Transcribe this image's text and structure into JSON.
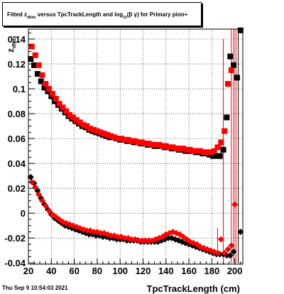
{
  "title": {
    "part1": "Fitted  z",
    "sub1": "dNdx",
    "part2": "  versus  TpcTrackLength and log",
    "sub2": "10",
    "part3": "(β  γ) for Primary pion+"
  },
  "timestamp": "Thu Sep  9 10:54:03 2021",
  "colors": {
    "black_series": "#000000",
    "red_series": "#ff0000",
    "grid": "#000000"
  },
  "chart_data": {
    "type": "scatter",
    "xlabel": "TpcTrackLength (cm)",
    "ylabel": "z_dNdx",
    "ylabel_main": "z",
    "ylabel_sub": "dNdx",
    "xlim": [
      20,
      207
    ],
    "ylim": [
      -0.041,
      0.148
    ],
    "grid": true,
    "xticks": [
      20,
      40,
      60,
      80,
      100,
      120,
      140,
      160,
      180,
      200
    ],
    "xtick_labels": [
      "20",
      "40",
      "60",
      "80",
      "100",
      "120",
      "140",
      "160",
      "180",
      "200"
    ],
    "yticks": [
      -0.04,
      -0.02,
      0,
      0.02,
      0.04,
      0.06,
      0.08,
      0.1,
      0.12,
      0.14
    ],
    "ytick_labels": [
      "-0.04",
      "-0.02",
      "0",
      "0.02",
      "0.04",
      "0.06",
      "0.08",
      "0.1",
      "0.12",
      "0.14"
    ],
    "series": [
      {
        "marker": "square",
        "color": "#000000",
        "x": [
          22,
          25,
          28,
          31,
          34,
          37,
          40,
          43,
          46,
          49,
          52,
          55,
          58,
          61,
          64,
          67,
          70,
          73,
          76,
          79,
          82,
          85,
          88,
          91,
          94,
          97,
          100,
          103,
          106,
          109,
          112,
          115,
          118,
          121,
          124,
          127,
          130,
          133,
          136,
          139,
          142,
          145,
          148,
          151,
          154,
          157,
          160,
          163,
          166,
          169,
          172,
          175,
          178,
          181,
          184,
          187,
          190,
          193,
          196,
          199,
          202,
          205
        ],
        "y": [
          0.124,
          0.119,
          0.112,
          0.106,
          0.101,
          0.098,
          0.094,
          0.09,
          0.087,
          0.084,
          0.081,
          0.078,
          0.076,
          0.074,
          0.072,
          0.07,
          0.069,
          0.067,
          0.066,
          0.065,
          0.064,
          0.063,
          0.062,
          0.061,
          0.061,
          0.06,
          0.059,
          0.059,
          0.058,
          0.058,
          0.057,
          0.057,
          0.056,
          0.056,
          0.055,
          0.055,
          0.054,
          0.054,
          0.054,
          0.053,
          0.053,
          0.052,
          0.052,
          0.051,
          0.051,
          0.05,
          0.05,
          0.05,
          0.049,
          0.049,
          0.048,
          0.048,
          0.047,
          0.046,
          0.046,
          0.046,
          0.051,
          0.077,
          0.126,
          0.119,
          0.109,
          0.147
        ]
      },
      {
        "marker": "square",
        "color": "#ff0000",
        "x": [
          23,
          26,
          29,
          32,
          35,
          38,
          41,
          44,
          47,
          50,
          53,
          56,
          59,
          62,
          65,
          68,
          71,
          74,
          77,
          80,
          83,
          86,
          89,
          92,
          95,
          98,
          101,
          104,
          107,
          110,
          113,
          116,
          119,
          122,
          125,
          128,
          131,
          134,
          137,
          140,
          143,
          146,
          149,
          152,
          155,
          158,
          161,
          164,
          167,
          170,
          173,
          176,
          179,
          182,
          185,
          188,
          191,
          194,
          197
        ],
        "y": [
          0.134,
          0.127,
          0.119,
          0.111,
          0.104,
          0.1,
          0.096,
          0.092,
          0.088,
          0.085,
          0.082,
          0.079,
          0.077,
          0.075,
          0.073,
          0.071,
          0.07,
          0.068,
          0.067,
          0.066,
          0.065,
          0.064,
          0.063,
          0.062,
          0.061,
          0.06,
          0.06,
          0.059,
          0.059,
          0.058,
          0.058,
          0.057,
          0.057,
          0.056,
          0.056,
          0.055,
          0.055,
          0.055,
          0.054,
          0.054,
          0.053,
          0.053,
          0.052,
          0.052,
          0.052,
          0.051,
          0.051,
          0.05,
          0.05,
          0.05,
          0.049,
          0.049,
          0.049,
          0.05,
          0.053,
          0.057,
          0.066,
          0.104,
          0.115
        ]
      },
      {
        "marker": "diamond",
        "color": "#000000",
        "x": [
          22,
          25,
          28,
          31,
          34,
          37,
          40,
          43,
          46,
          49,
          52,
          55,
          58,
          61,
          64,
          67,
          70,
          73,
          76,
          79,
          82,
          85,
          88,
          91,
          94,
          97,
          100,
          103,
          106,
          109,
          112,
          115,
          118,
          121,
          124,
          127,
          130,
          133,
          136,
          139,
          142,
          145,
          148,
          151,
          154,
          157,
          160,
          163,
          166,
          169,
          172,
          175,
          178,
          181,
          184,
          187,
          190,
          193,
          196,
          199,
          202,
          205
        ],
        "y": [
          0.029,
          0.024,
          0.018,
          0.012,
          0.007,
          0.003,
          -0.001,
          -0.004,
          -0.006,
          -0.008,
          -0.01,
          -0.011,
          -0.012,
          -0.013,
          -0.014,
          -0.015,
          -0.016,
          -0.017,
          -0.017,
          -0.018,
          -0.018,
          -0.019,
          -0.019,
          -0.02,
          -0.02,
          -0.021,
          -0.021,
          -0.021,
          -0.022,
          -0.022,
          -0.022,
          -0.022,
          -0.023,
          -0.023,
          -0.023,
          -0.023,
          -0.023,
          -0.023,
          -0.022,
          -0.021,
          -0.02,
          -0.02,
          -0.021,
          -0.022,
          -0.023,
          -0.024,
          -0.025,
          -0.026,
          -0.027,
          -0.028,
          -0.029,
          -0.03,
          -0.031,
          -0.032,
          -0.033,
          -0.033,
          -0.033,
          -0.034,
          -0.034,
          -0.031,
          0.109,
          -0.015
        ]
      },
      {
        "marker": "diamond",
        "color": "#ff0000",
        "x": [
          23,
          26,
          29,
          32,
          35,
          38,
          41,
          44,
          47,
          50,
          53,
          56,
          59,
          62,
          65,
          68,
          71,
          74,
          77,
          80,
          83,
          86,
          89,
          92,
          95,
          98,
          101,
          104,
          107,
          110,
          113,
          116,
          119,
          122,
          125,
          128,
          131,
          134,
          137,
          140,
          143,
          146,
          149,
          152,
          155,
          158,
          161,
          164,
          167,
          170,
          173,
          176,
          179,
          182,
          185,
          188,
          191,
          194,
          197,
          200
        ],
        "y": [
          0.025,
          0.021,
          0.015,
          0.01,
          0.006,
          0.002,
          -0.001,
          -0.003,
          -0.005,
          -0.007,
          -0.008,
          -0.009,
          -0.01,
          -0.011,
          -0.012,
          -0.013,
          -0.014,
          -0.014,
          -0.015,
          -0.015,
          -0.016,
          -0.016,
          -0.017,
          -0.018,
          -0.018,
          -0.019,
          -0.019,
          -0.02,
          -0.02,
          -0.021,
          -0.021,
          -0.022,
          -0.022,
          -0.022,
          -0.022,
          -0.022,
          -0.021,
          -0.02,
          -0.019,
          -0.017,
          -0.016,
          -0.015,
          -0.016,
          -0.017,
          -0.019,
          -0.021,
          -0.023,
          -0.024,
          -0.025,
          -0.027,
          -0.028,
          -0.029,
          -0.03,
          -0.031,
          -0.032,
          -0.021,
          -0.032,
          -0.029,
          -0.026,
          0.007
        ]
      }
    ],
    "error_bars": [
      {
        "x": 185,
        "ylow": -0.03,
        "yhigh": -0.012,
        "color": "#ff0000"
      },
      {
        "x": 188,
        "ylow": 0.043,
        "yhigh": 0.058,
        "color": "#ff0000"
      },
      {
        "x": 190,
        "ylow": -0.04,
        "yhigh": 0.14,
        "color": "#ff0000"
      },
      {
        "x": 197,
        "ylow": -0.04,
        "yhigh": 0.148,
        "color": "#ff0000"
      },
      {
        "x": 199,
        "ylow": -0.04,
        "yhigh": 0.148,
        "color": "#ff0000"
      },
      {
        "x": 201,
        "ylow": -0.04,
        "yhigh": 0.148,
        "color": "#ff0000"
      },
      {
        "x": 203,
        "ylow": -0.04,
        "yhigh": 0.148,
        "color": "#000000"
      }
    ]
  }
}
